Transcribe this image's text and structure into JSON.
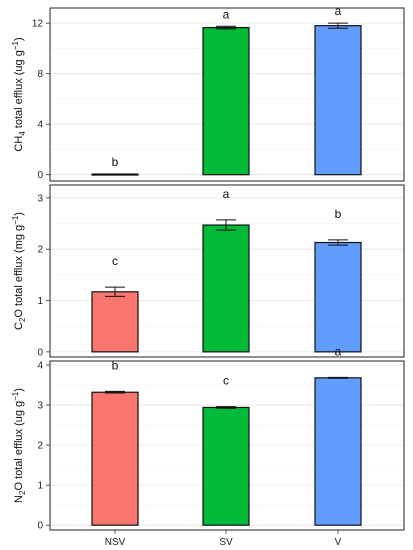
{
  "chart_data": [
    {
      "type": "bar",
      "categories": [
        "NSV",
        "SV",
        "V"
      ],
      "values": [
        0.05,
        11.65,
        11.8
      ],
      "errors": [
        0,
        0.1,
        0.2
      ],
      "significance": [
        "b",
        "a",
        "a"
      ],
      "colors": [
        "#F8766D",
        "#00BA38",
        "#619CFF"
      ],
      "ylabel": {
        "main": "CH",
        "sub": "4",
        "rest": " total efflux (ug g",
        "sup": "−1",
        "end": ")"
      },
      "ylim": [
        -0.5,
        13.2
      ],
      "yticks": [
        "0",
        "4",
        "8",
        "12"
      ],
      "grid": true
    },
    {
      "type": "bar",
      "categories": [
        "NSV",
        "SV",
        "V"
      ],
      "values": [
        1.17,
        2.47,
        2.13
      ],
      "errors": [
        0.09,
        0.1,
        0.05
      ],
      "significance": [
        "c",
        "a",
        "b"
      ],
      "colors": [
        "#F8766D",
        "#00BA38",
        "#619CFF"
      ],
      "ylabel": {
        "main": "C",
        "sub": "2",
        "rest": "O total efflux (mg g",
        "sup": "−1",
        "end": ")"
      },
      "ylim": [
        -0.1,
        3.25
      ],
      "yticks": [
        "0",
        "1",
        "2",
        "3"
      ],
      "grid": true
    },
    {
      "type": "bar",
      "categories": [
        "NSV",
        "SV",
        "V"
      ],
      "values": [
        3.32,
        2.94,
        3.68
      ],
      "errors": [
        0.02,
        0.02,
        0.01
      ],
      "significance": [
        "b",
        "c",
        "a"
      ],
      "colors": [
        "#F8766D",
        "#00BA38",
        "#619CFF"
      ],
      "ylabel": {
        "main": "N",
        "sub": "2",
        "rest": "O total efflux (ug g",
        "sup": "−1",
        "end": ")"
      },
      "ylim": [
        -0.12,
        4.1
      ],
      "yticks": [
        "0",
        "1",
        "2",
        "3",
        "4"
      ],
      "grid": true
    }
  ]
}
